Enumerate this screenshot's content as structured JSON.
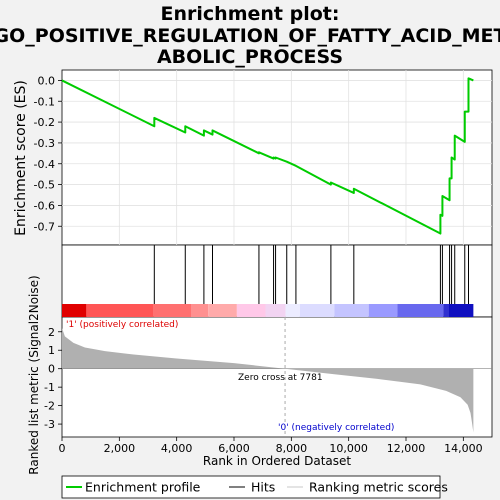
{
  "title_lines": [
    "Enrichment plot:",
    "GO_POSITIVE_REGULATION_OF_FATTY_ACID_MET",
    "ABOLIC_PROCESS"
  ],
  "colors": {
    "enrichment_line": "#00cc00",
    "hits": "#000000",
    "metric_fill": "#b0b0b0",
    "positive_label": "#dd0000",
    "negative_label": "#0000cc"
  },
  "chart_data": {
    "type": "line",
    "title": "Enrichment plot: GO_POSITIVE_REGULATION_OF_FATTY_ACID_METABOLIC_PROCESS",
    "xlabel": "Rank in Ordered Dataset",
    "xlim": [
      0,
      15000
    ],
    "x_ticks": [
      0,
      2000,
      4000,
      6000,
      8000,
      10000,
      12000,
      14000
    ],
    "x_tick_labels": [
      "0",
      "2,000",
      "4,000",
      "6,000",
      "8,000",
      "10,000",
      "12,000",
      "14,000"
    ],
    "n_genes": 14350,
    "es_panel": {
      "ylabel": "Enrichment score (ES)",
      "ylim": [
        -0.79,
        0.05
      ],
      "y_ticks": [
        0.0,
        -0.1,
        -0.2,
        -0.3,
        -0.4,
        -0.5,
        -0.6,
        -0.7
      ],
      "y_tick_labels": [
        "0.0",
        "-0.1",
        "-0.2",
        "-0.3",
        "-0.4",
        "-0.5",
        "-0.6",
        "-0.7"
      ],
      "series": [
        {
          "name": "Enrichment profile",
          "x": [
            0,
            3220,
            3220,
            4300,
            4300,
            4950,
            4950,
            5250,
            5250,
            6870,
            6870,
            7380,
            7380,
            7450,
            7450,
            7840,
            7840,
            8160,
            8160,
            9380,
            9380,
            10180,
            10180,
            13200,
            13200,
            13270,
            13270,
            13520,
            13520,
            13590,
            13590,
            13700,
            13700,
            14050,
            14050,
            14180,
            14180,
            14350
          ],
          "y": [
            0.0,
            -0.22,
            -0.18,
            -0.25,
            -0.22,
            -0.265,
            -0.24,
            -0.26,
            -0.24,
            -0.35,
            -0.345,
            -0.375,
            -0.37,
            -0.375,
            -0.37,
            -0.39,
            -0.39,
            -0.41,
            -0.41,
            -0.5,
            -0.49,
            -0.54,
            -0.52,
            -0.735,
            -0.645,
            -0.65,
            -0.555,
            -0.575,
            -0.47,
            -0.47,
            -0.37,
            -0.38,
            -0.265,
            -0.295,
            -0.15,
            -0.15,
            0.01,
            0.0
          ]
        }
      ]
    },
    "hits_x": [
      3220,
      4300,
      4950,
      5250,
      6870,
      7380,
      7450,
      7840,
      8160,
      9380,
      10180,
      13200,
      13270,
      13520,
      13590,
      13700,
      14050,
      14180
    ],
    "color_bar_segments": [
      {
        "from": 0,
        "to": 850,
        "color": "#e00000"
      },
      {
        "from": 850,
        "to": 3200,
        "color": "#ff5555"
      },
      {
        "from": 3200,
        "to": 4500,
        "color": "#ff7070"
      },
      {
        "from": 4500,
        "to": 5100,
        "color": "#ff9090"
      },
      {
        "from": 5100,
        "to": 6100,
        "color": "#ffaaaa"
      },
      {
        "from": 6100,
        "to": 7100,
        "color": "#ffc8e8"
      },
      {
        "from": 7100,
        "to": 7800,
        "color": "#f2d4f2"
      },
      {
        "from": 7800,
        "to": 8300,
        "color": "#ececff"
      },
      {
        "from": 8300,
        "to": 9500,
        "color": "#dcdcff"
      },
      {
        "from": 9500,
        "to": 10700,
        "color": "#c4c4ff"
      },
      {
        "from": 10700,
        "to": 11700,
        "color": "#9a9aff"
      },
      {
        "from": 11700,
        "to": 13300,
        "color": "#6868ee"
      },
      {
        "from": 13300,
        "to": 13500,
        "color": "#3030d0"
      },
      {
        "from": 13500,
        "to": 14350,
        "color": "#1010c0"
      }
    ],
    "metric_panel": {
      "ylabel": "Ranked list metric (Signal2Noise)",
      "ylim": [
        -3.7,
        2.8
      ],
      "y_ticks": [
        2,
        1,
        0,
        -1,
        -2,
        -3
      ],
      "y_tick_labels": [
        "2",
        "1",
        "0",
        "-1",
        "-2",
        "-3"
      ],
      "x": [
        0,
        100,
        400,
        800,
        1500,
        2500,
        4000,
        6000,
        7781,
        9500,
        11000,
        12500,
        13400,
        13900,
        14150,
        14250,
        14300,
        14350
      ],
      "y": [
        2.2,
        1.75,
        1.4,
        1.15,
        0.95,
        0.77,
        0.55,
        0.3,
        0.0,
        -0.3,
        -0.55,
        -0.85,
        -1.2,
        -1.55,
        -1.95,
        -2.4,
        -2.9,
        -3.45
      ]
    },
    "zero_cross": 7781,
    "annotations": {
      "positive": "'1' (positively correlated)",
      "negative": "'0' (negatively correlated)",
      "zero_cross": "Zero cross at 7781"
    },
    "legend": {
      "placement": "bottom",
      "entries": [
        "Enrichment profile",
        "Hits",
        "Ranking metric scores"
      ]
    }
  }
}
